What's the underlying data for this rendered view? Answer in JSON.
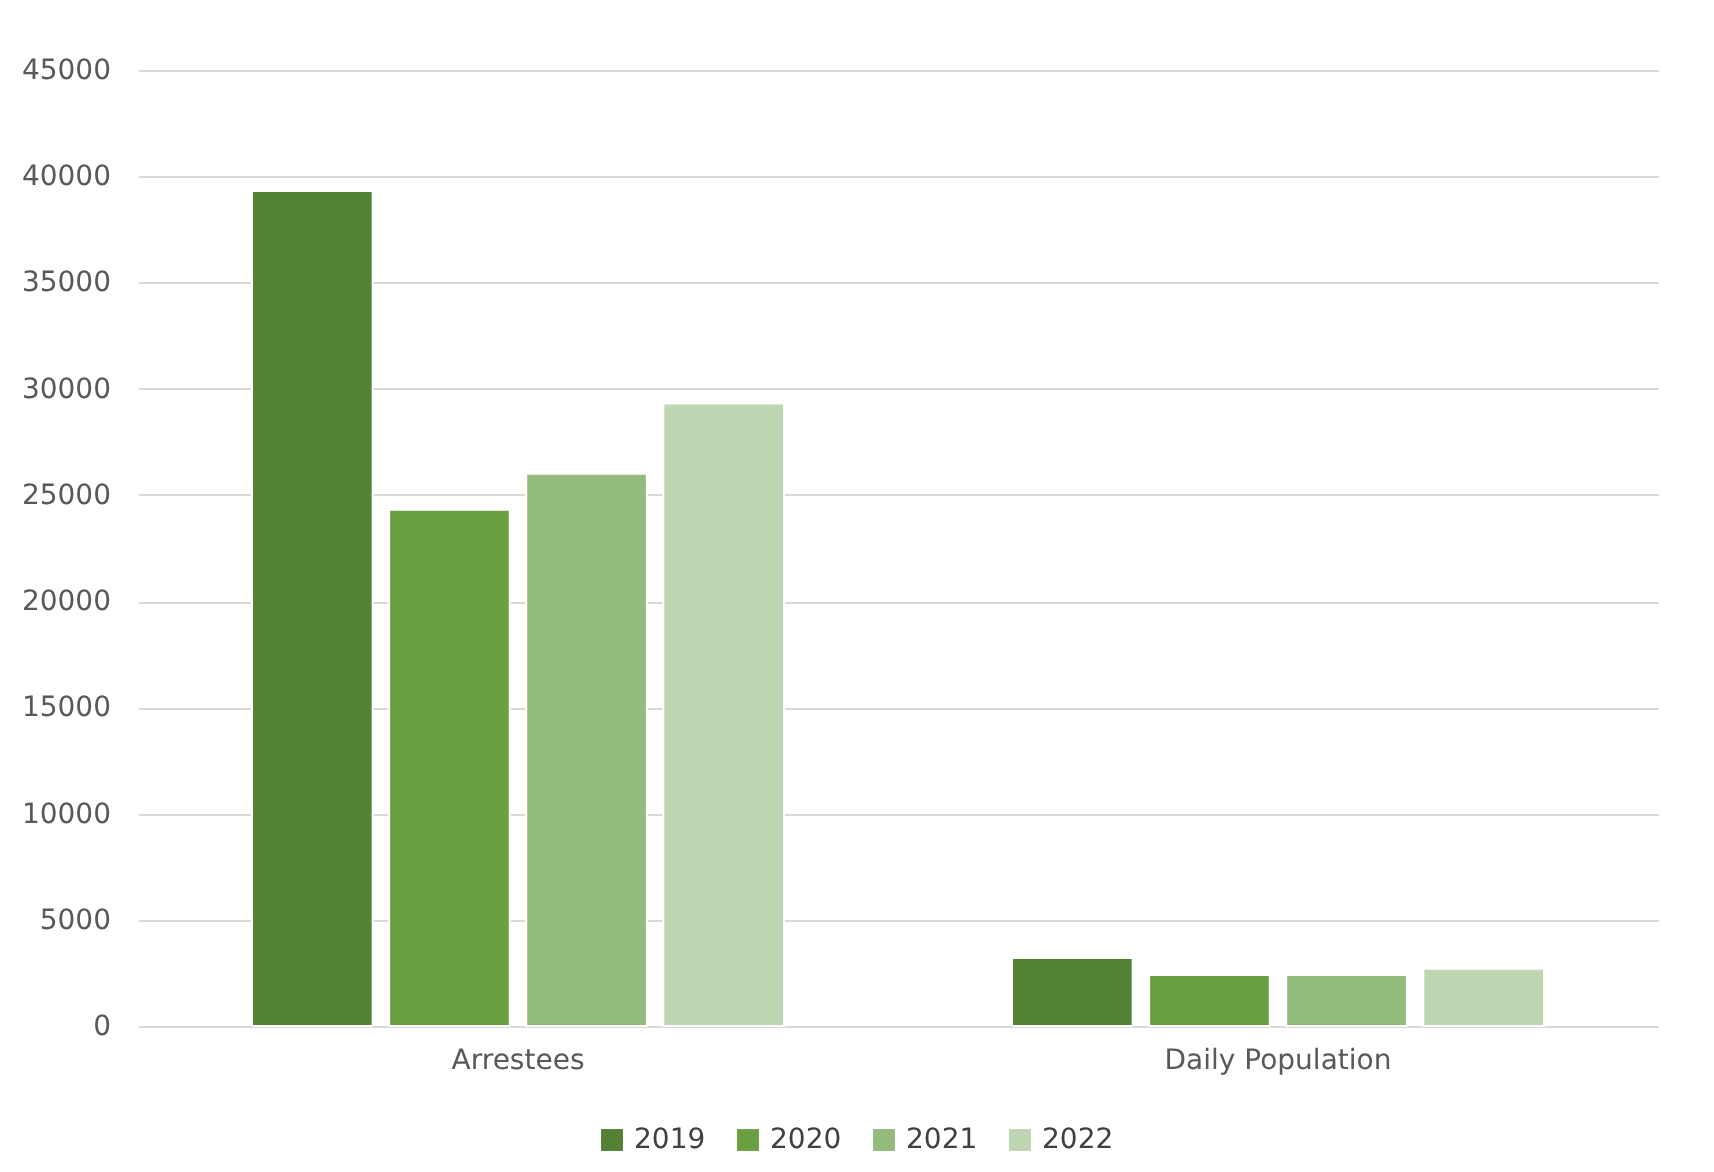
{
  "chart_data": {
    "type": "bar",
    "categories": [
      "Arrestees",
      "Daily Population"
    ],
    "series": [
      {
        "name": "2019",
        "color": "#548235",
        "values": [
          39300,
          3200
        ]
      },
      {
        "name": "2020",
        "color": "#69a042",
        "values": [
          24300,
          2400
        ]
      },
      {
        "name": "2021",
        "color": "#93bb7c",
        "values": [
          26000,
          2400
        ]
      },
      {
        "name": "2022",
        "color": "#bed6b2",
        "values": [
          29300,
          2700
        ]
      }
    ],
    "ylim": [
      0,
      45000
    ],
    "yticks": [
      0,
      5000,
      10000,
      15000,
      20000,
      25000,
      30000,
      35000,
      40000,
      45000
    ],
    "grid": "y",
    "legend": "bottom"
  }
}
